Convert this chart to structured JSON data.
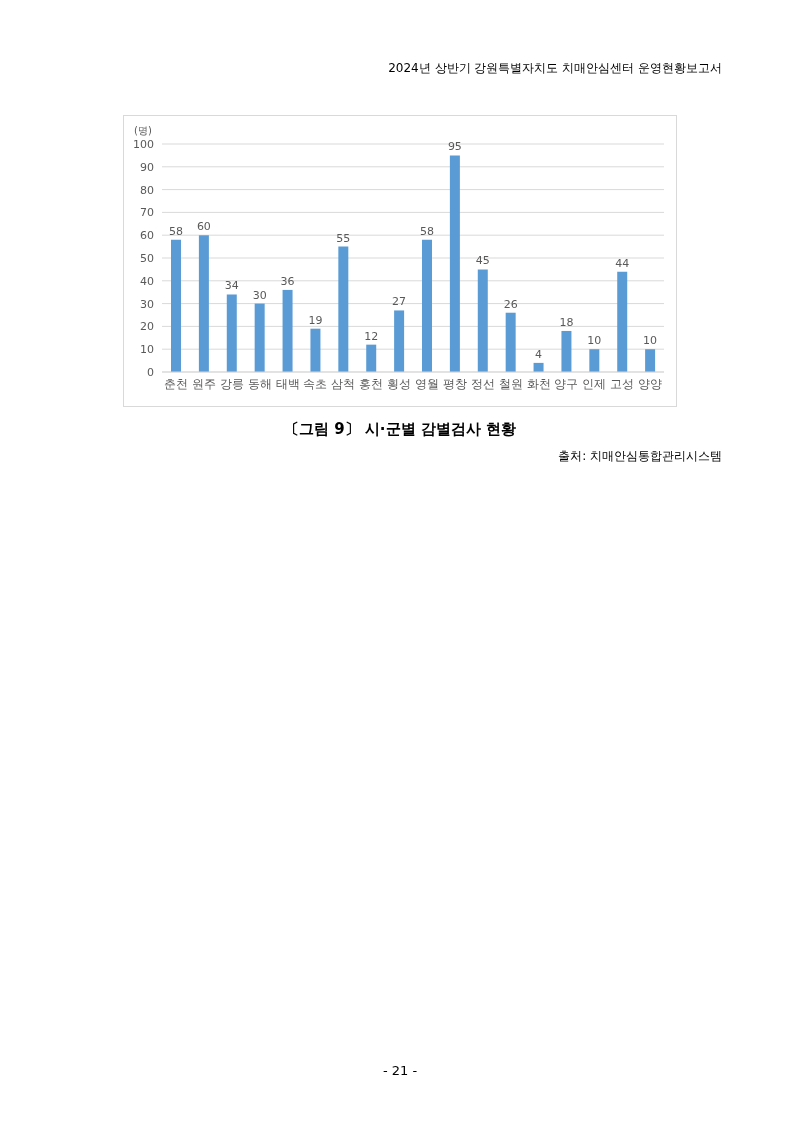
{
  "chart_data": {
    "type": "bar",
    "title": "〔그림 9〕 시·군별 감별검사 현황",
    "ylabel": "(명)",
    "annotations": [
      "2024년 상반기 강원특별자치도 치매안심센터 운영현황보고서",
      "출처: 치매안심통합관리시스템",
      "- 21 -"
    ],
    "categories": [
      "춘천",
      "원주",
      "강릉",
      "동해",
      "태백",
      "속초",
      "삼척",
      "홍천",
      "횡성",
      "영월",
      "평창",
      "정선",
      "철원",
      "화천",
      "양구",
      "인제",
      "고성",
      "양양"
    ],
    "values": [
      58,
      60,
      34,
      30,
      36,
      19,
      55,
      12,
      27,
      58,
      95,
      45,
      26,
      4,
      18,
      10,
      44,
      10
    ],
    "color": "#5b9bd5",
    "ylim": [
      0,
      100
    ],
    "yticks": [
      0,
      10,
      20,
      30,
      40,
      50,
      60,
      70,
      80,
      90,
      100
    ],
    "grid": "y",
    "data_labels": true,
    "legend": false
  }
}
